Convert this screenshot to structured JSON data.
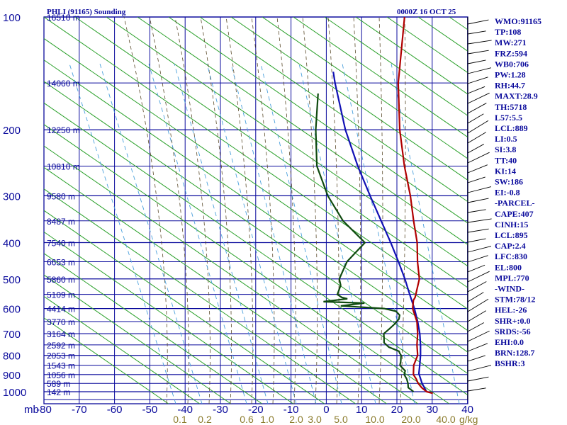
{
  "header": {
    "station": "PHLI (91165) Sounding",
    "time": "0000Z 16 OCT 25"
  },
  "colors": {
    "grid": "#0a0a9c",
    "temperature": "#b00000",
    "dewpoint": "#0f4a0f",
    "parcel": "#1010b4",
    "dry_adiabat": "#2aa02a",
    "moist_adiabat": "#5a4a2a",
    "mixing_ratio": "#4aa0dc",
    "label_blue": "#0a0a9c",
    "mixing_label": "#8a7a2a"
  },
  "chart_data": {
    "type": "skew-t",
    "pressure_ticks": [
      100,
      200,
      300,
      400,
      500,
      600,
      700,
      800,
      900,
      1000
    ],
    "pressure_unit": "mb",
    "temperature_ticks": [
      -80,
      -70,
      -60,
      -50,
      -40,
      -30,
      -20,
      -10,
      0,
      10,
      20,
      30,
      40
    ],
    "pressure_range": [
      100,
      1050
    ],
    "temperature_range_at_bottom": [
      -80,
      40
    ],
    "height_labels": [
      {
        "p": 100,
        "text": "16510 m"
      },
      {
        "p": 150,
        "text": "14060 m"
      },
      {
        "p": 200,
        "text": "12250 m"
      },
      {
        "p": 250,
        "text": "10810 m"
      },
      {
        "p": 300,
        "text": "9580 m"
      },
      {
        "p": 350,
        "text": "8487 m"
      },
      {
        "p": 400,
        "text": "7540 m"
      },
      {
        "p": 450,
        "text": "6653 m"
      },
      {
        "p": 500,
        "text": "5860 m"
      },
      {
        "p": 550,
        "text": "5109 m"
      },
      {
        "p": 600,
        "text": "4414 m"
      },
      {
        "p": 650,
        "text": "3770 m"
      },
      {
        "p": 700,
        "text": "3164 m"
      },
      {
        "p": 750,
        "text": "2592 m"
      },
      {
        "p": 800,
        "text": "2053 m"
      },
      {
        "p": 850,
        "text": "1543 m"
      },
      {
        "p": 900,
        "text": "1056 m"
      },
      {
        "p": 950,
        "text": "589 m"
      },
      {
        "p": 1000,
        "text": "142 m"
      }
    ],
    "mixing_ratio_labels": [
      "0.1",
      "0.2",
      "0.6",
      "1.0",
      "2.0",
      "3.0",
      "5.0",
      "10.0",
      "20.0",
      "40.0"
    ],
    "mixing_ratio_unit": "g/kg",
    "temperature_profile": [
      {
        "p": 1010,
        "t": 27.4
      },
      {
        "p": 1000,
        "t": 25.2
      },
      {
        "p": 975,
        "t": 22.7
      },
      {
        "p": 950,
        "t": 20.6
      },
      {
        "p": 925,
        "t": 18.9
      },
      {
        "p": 900,
        "t": 16.9
      },
      {
        "p": 850,
        "t": 14.5
      },
      {
        "p": 800,
        "t": 13.0
      },
      {
        "p": 750,
        "t": 10.0
      },
      {
        "p": 700,
        "t": 7.2
      },
      {
        "p": 650,
        "t": 3.8
      },
      {
        "p": 600,
        "t": -0.9
      },
      {
        "p": 570,
        "t": -2.9
      },
      {
        "p": 560,
        "t": -3.2
      },
      {
        "p": 500,
        "t": -6.9
      },
      {
        "p": 450,
        "t": -12.0
      },
      {
        "p": 400,
        "t": -17.2
      },
      {
        "p": 350,
        "t": -24.0
      },
      {
        "p": 300,
        "t": -31.6
      },
      {
        "p": 250,
        "t": -41.2
      },
      {
        "p": 200,
        "t": -52.2
      },
      {
        "p": 150,
        "t": -65.1
      },
      {
        "p": 100,
        "t": -80.9
      }
    ],
    "dewpoint_profile": [
      {
        "p": 1000,
        "t": 21.5
      },
      {
        "p": 975,
        "t": 18.9
      },
      {
        "p": 950,
        "t": 17.7
      },
      {
        "p": 925,
        "t": 16.2
      },
      {
        "p": 900,
        "t": 14.3
      },
      {
        "p": 880,
        "t": 13.6
      },
      {
        "p": 860,
        "t": 11.6
      },
      {
        "p": 850,
        "t": 10.6
      },
      {
        "p": 830,
        "t": 9.8
      },
      {
        "p": 800,
        "t": 8.3
      },
      {
        "p": 790,
        "t": 7.4
      },
      {
        "p": 780,
        "t": 6.6
      },
      {
        "p": 760,
        "t": 2.6
      },
      {
        "p": 740,
        "t": 0.1
      },
      {
        "p": 720,
        "t": -1.1
      },
      {
        "p": 700,
        "t": -2.4
      },
      {
        "p": 680,
        "t": -2.1
      },
      {
        "p": 660,
        "t": -1.9
      },
      {
        "p": 640,
        "t": -2.0
      },
      {
        "p": 625,
        "t": -2.8
      },
      {
        "p": 610,
        "t": -4.9
      },
      {
        "p": 600,
        "t": -9.0
      },
      {
        "p": 590,
        "t": -22.0
      },
      {
        "p": 580,
        "t": -16.0
      },
      {
        "p": 575,
        "t": -28.0
      },
      {
        "p": 565,
        "t": -22.0
      },
      {
        "p": 560,
        "t": -24.0
      },
      {
        "p": 550,
        "t": -26.0
      },
      {
        "p": 520,
        "t": -27.5
      },
      {
        "p": 500,
        "t": -29.6
      },
      {
        "p": 450,
        "t": -32.0
      },
      {
        "p": 400,
        "t": -32.0
      },
      {
        "p": 350,
        "t": -44.0
      },
      {
        "p": 300,
        "t": -55.0
      },
      {
        "p": 250,
        "t": -66.0
      },
      {
        "p": 200,
        "t": -76.0
      },
      {
        "p": 160,
        "t": -85.0
      }
    ],
    "parcel_profile": [
      {
        "p": 1000,
        "t": 25.2
      },
      {
        "p": 950,
        "t": 21.7
      },
      {
        "p": 895,
        "t": 18.2
      },
      {
        "p": 850,
        "t": 16.2
      },
      {
        "p": 800,
        "t": 13.8
      },
      {
        "p": 750,
        "t": 11.0
      },
      {
        "p": 700,
        "t": 7.8
      },
      {
        "p": 650,
        "t": 4.0
      },
      {
        "p": 600,
        "t": -0.4
      },
      {
        "p": 550,
        "t": -5.5
      },
      {
        "p": 500,
        "t": -11.0
      },
      {
        "p": 450,
        "t": -17.4
      },
      {
        "p": 400,
        "t": -24.7
      },
      {
        "p": 350,
        "t": -33.2
      },
      {
        "p": 300,
        "t": -43.0
      },
      {
        "p": 250,
        "t": -54.4
      },
      {
        "p": 200,
        "t": -67.6
      },
      {
        "p": 150,
        "t": -83.0
      },
      {
        "p": 140,
        "t": -86.5
      }
    ],
    "grid": true
  },
  "indices": [
    "WMO:91165",
    "TP:108",
    "MW:271",
    "FRZ:594",
    "WB0:706",
    "PW:1.28",
    "RH:44.7",
    "MAXT:28.9",
    "TH:5718",
    "L57:5.5",
    "LCL:889",
    "LI:0.5",
    "SI:3.8",
    "TT:40",
    "KI:14",
    "SW:186",
    "EI:-0.8",
    "-PARCEL-",
    "CAPE:407",
    "CINH:15",
    "LCL:895",
    "CAP:2.4",
    "LFC:830",
    "EL:800",
    "MPL:770",
    "-WIND-",
    "STM:78/12",
    "HEL:-26",
    "SHR+:0.0",
    "SRDS:-56",
    "EHI:0.0",
    "BRN:128.7",
    "BSHR:3"
  ]
}
